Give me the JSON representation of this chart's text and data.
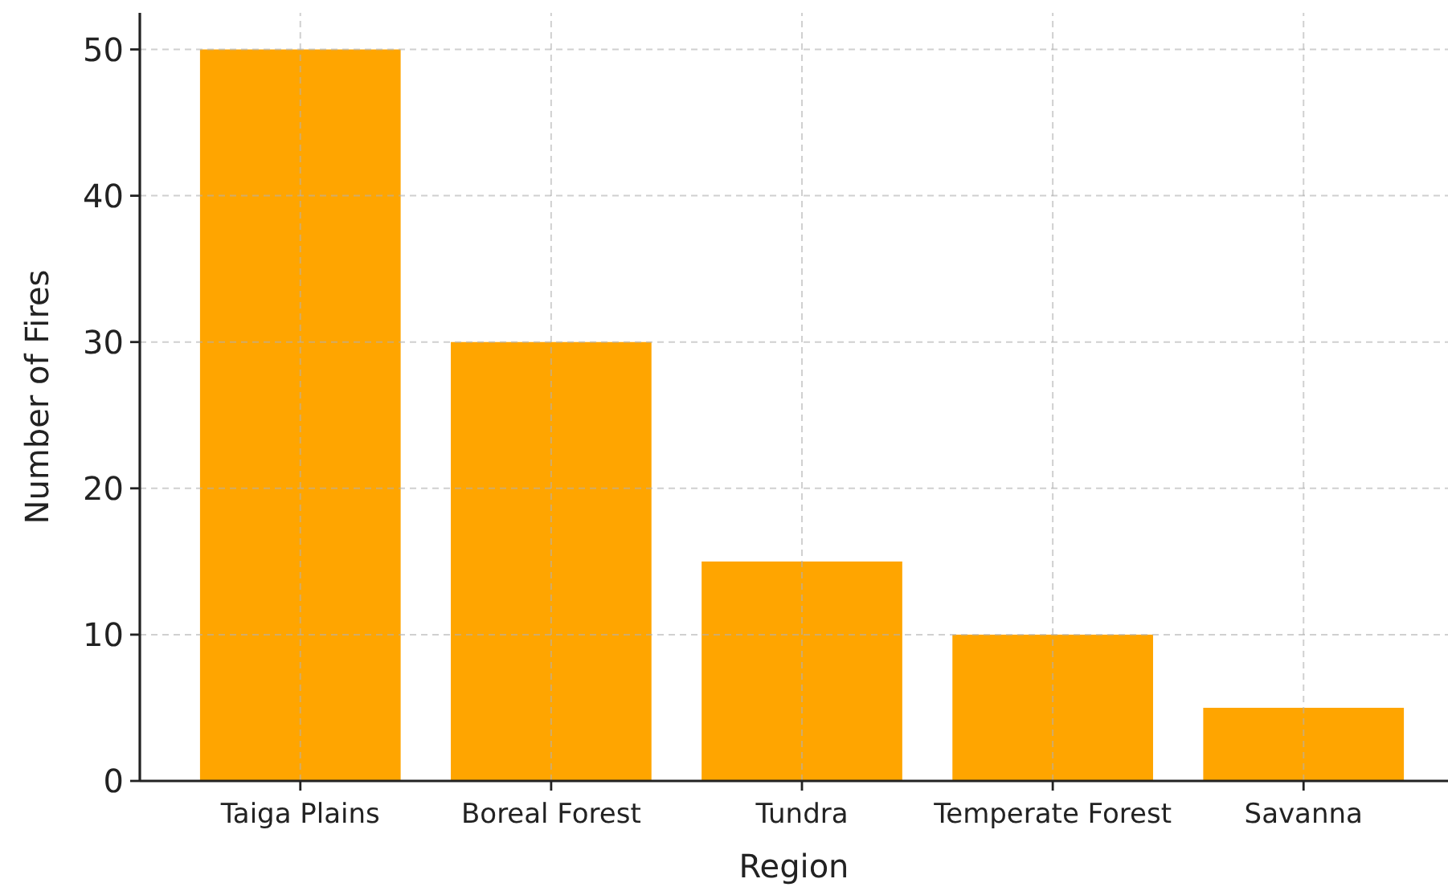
{
  "chart_data": {
    "type": "bar",
    "xlabel": "Region",
    "ylabel": "Number of Fires",
    "categories": [
      "Taiga Plains",
      "Boreal Forest",
      "Tundra",
      "Temperate Forest",
      "Savanna"
    ],
    "values": [
      50,
      30,
      15,
      10,
      5
    ],
    "color": "#ffa500",
    "ylim": [
      0,
      52.5
    ],
    "yticks": [
      0,
      10,
      20,
      30,
      40,
      50
    ],
    "grid": true
  }
}
